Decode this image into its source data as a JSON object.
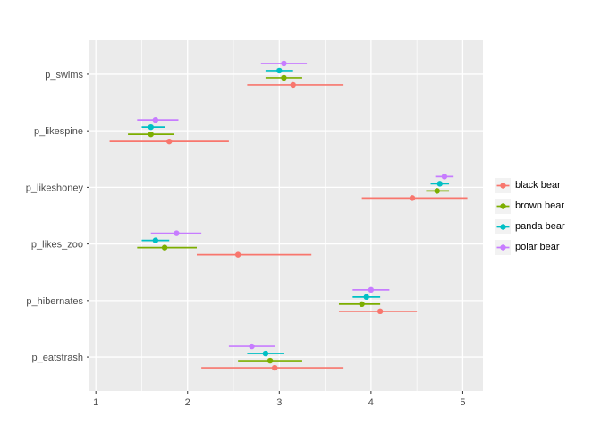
{
  "figure": {
    "background": "#FFFFFF",
    "panel_background": "#EBEBEB",
    "grid_color": "#FFFFFF",
    "tick_label_color": "#4D4D4D",
    "axis_tick_color": "#333333"
  },
  "chart_data": {
    "type": "scatter",
    "subtype": "horizontal-pointrange",
    "title": "",
    "xlabel": "",
    "ylabel": "",
    "xlim": [
      0.93,
      5.22
    ],
    "x_major_ticks": [
      1,
      2,
      3,
      4,
      5
    ],
    "x_minor_ticks": [
      1.5,
      2.5,
      3.5,
      4.5
    ],
    "grid": true,
    "legend_position": "right",
    "categories": [
      "p_swims",
      "p_likespine",
      "p_likeshoney",
      "p_likes_zoo",
      "p_hibernates",
      "p_eatstrash"
    ],
    "series": [
      {
        "name": "black bear",
        "color": "#F8766D",
        "values": [
          {
            "category": "p_swims",
            "estimate": 3.15,
            "lower": 2.65,
            "upper": 3.7
          },
          {
            "category": "p_likespine",
            "estimate": 1.8,
            "lower": 1.15,
            "upper": 2.45
          },
          {
            "category": "p_likeshoney",
            "estimate": 4.45,
            "lower": 3.9,
            "upper": 5.05
          },
          {
            "category": "p_likes_zoo",
            "estimate": 2.55,
            "lower": 2.1,
            "upper": 3.35
          },
          {
            "category": "p_hibernates",
            "estimate": 4.1,
            "lower": 3.65,
            "upper": 4.5
          },
          {
            "category": "p_eatstrash",
            "estimate": 2.95,
            "lower": 2.15,
            "upper": 3.7
          }
        ]
      },
      {
        "name": "brown bear",
        "color": "#7CAE00",
        "values": [
          {
            "category": "p_swims",
            "estimate": 3.05,
            "lower": 2.85,
            "upper": 3.25
          },
          {
            "category": "p_likespine",
            "estimate": 1.6,
            "lower": 1.35,
            "upper": 1.85
          },
          {
            "category": "p_likeshoney",
            "estimate": 4.72,
            "lower": 4.6,
            "upper": 4.85
          },
          {
            "category": "p_likes_zoo",
            "estimate": 1.75,
            "lower": 1.45,
            "upper": 2.1
          },
          {
            "category": "p_hibernates",
            "estimate": 3.9,
            "lower": 3.65,
            "upper": 4.1
          },
          {
            "category": "p_eatstrash",
            "estimate": 2.9,
            "lower": 2.55,
            "upper": 3.25
          }
        ]
      },
      {
        "name": "panda bear",
        "color": "#00BFC4",
        "values": [
          {
            "category": "p_swims",
            "estimate": 3.0,
            "lower": 2.85,
            "upper": 3.15
          },
          {
            "category": "p_likespine",
            "estimate": 1.6,
            "lower": 1.5,
            "upper": 1.75
          },
          {
            "category": "p_likeshoney",
            "estimate": 4.75,
            "lower": 4.65,
            "upper": 4.85
          },
          {
            "category": "p_likes_zoo",
            "estimate": 1.65,
            "lower": 1.5,
            "upper": 1.8
          },
          {
            "category": "p_hibernates",
            "estimate": 3.95,
            "lower": 3.8,
            "upper": 4.1
          },
          {
            "category": "p_eatstrash",
            "estimate": 2.85,
            "lower": 2.65,
            "upper": 3.05
          }
        ]
      },
      {
        "name": "polar bear",
        "color": "#C77CFF",
        "values": [
          {
            "category": "p_swims",
            "estimate": 3.05,
            "lower": 2.8,
            "upper": 3.3
          },
          {
            "category": "p_likespine",
            "estimate": 1.65,
            "lower": 1.45,
            "upper": 1.9
          },
          {
            "category": "p_likeshoney",
            "estimate": 4.8,
            "lower": 4.7,
            "upper": 4.9
          },
          {
            "category": "p_likes_zoo",
            "estimate": 1.88,
            "lower": 1.6,
            "upper": 2.15
          },
          {
            "category": "p_hibernates",
            "estimate": 4.0,
            "lower": 3.8,
            "upper": 4.2
          },
          {
            "category": "p_eatstrash",
            "estimate": 2.7,
            "lower": 2.45,
            "upper": 2.95
          }
        ]
      }
    ],
    "legend_items": [
      "black bear",
      "brown bear",
      "panda bear",
      "polar bear"
    ]
  }
}
